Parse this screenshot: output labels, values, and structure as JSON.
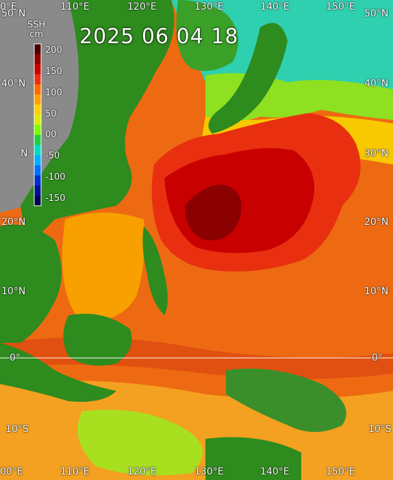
{
  "map": {
    "timestamp": "2025 06 04 18",
    "variable": "SSH",
    "unit": "cm",
    "colorbar": {
      "ticks": [
        "200",
        "150",
        "100",
        "50",
        "00",
        "-50",
        "-100",
        "-150"
      ],
      "colors": [
        "#4a0000",
        "#8b0000",
        "#c80000",
        "#e83010",
        "#ff6a00",
        "#ffa000",
        "#ffd000",
        "#d8f000",
        "#7cfc00",
        "#20d040",
        "#00e0c0",
        "#00b0ff",
        "#0070ff",
        "#0030d0",
        "#001090",
        "#000050"
      ]
    },
    "lat_labels_left": [
      "50°N",
      "40°N",
      "N",
      "20°N",
      "10°N",
      "0°",
      "10°S"
    ],
    "lat_labels_right": [
      "50°N",
      "40°N",
      "30°N",
      "20°N",
      "10°N",
      "0°",
      "10°S"
    ],
    "lon_labels_top": [
      "0°E",
      "110°E",
      "120°E",
      "130°E",
      "140°E",
      "150°E"
    ],
    "lon_labels_bottom": [
      "00°E",
      "110°E",
      "120°E",
      "130°E",
      "140°E",
      "150°E"
    ]
  }
}
